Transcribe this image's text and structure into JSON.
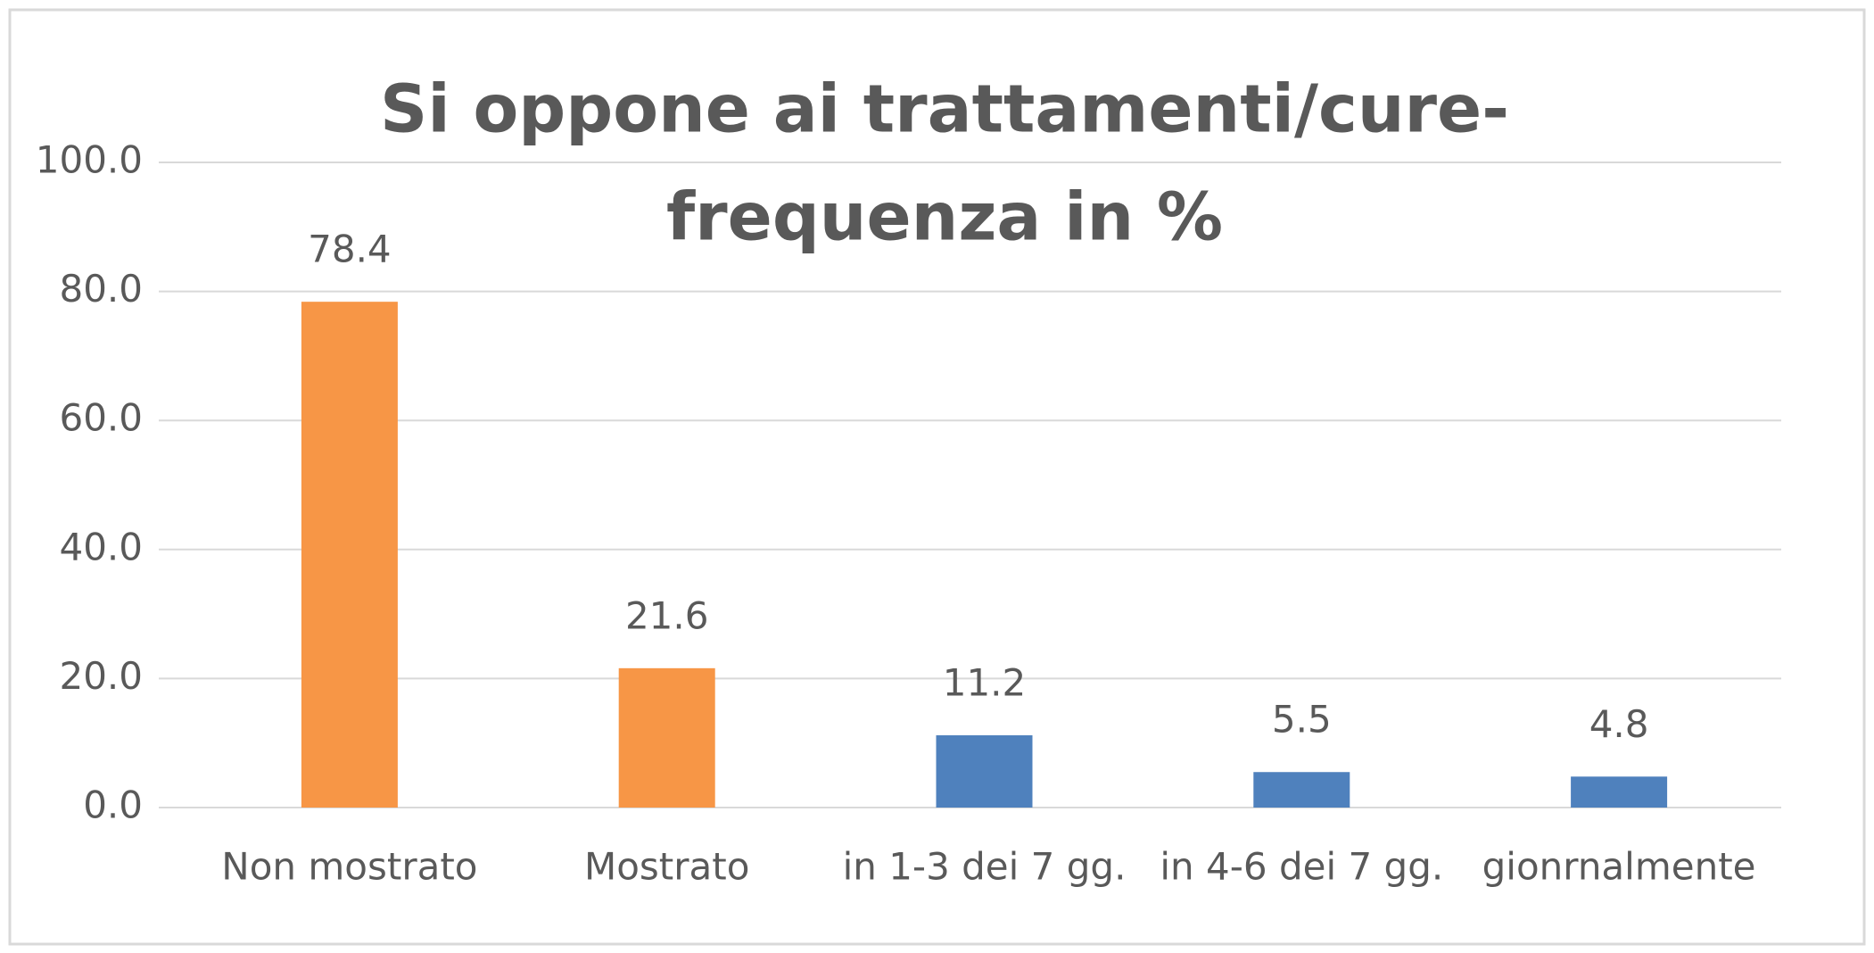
{
  "chart_data": {
    "type": "bar",
    "title": [
      "Si oppone ai trattamenti/cure-",
      "frequenza in %"
    ],
    "categories": [
      "Non mostrato",
      "Mostrato",
      "in 1-3 dei 7 gg.",
      "in 4-6 dei 7 gg.",
      "gionrnalmente"
    ],
    "values": [
      78.4,
      21.6,
      11.2,
      5.5,
      4.8
    ],
    "colors": [
      "#f79646",
      "#f79646",
      "#4f81bd",
      "#4f81bd",
      "#4f81bd"
    ],
    "ylim": [
      0,
      100
    ],
    "yticks": [
      {
        "value": 0,
        "label": "0.0"
      },
      {
        "value": 20,
        "label": "20.0"
      },
      {
        "value": 40,
        "label": "40.0"
      },
      {
        "value": 60,
        "label": "60.0"
      },
      {
        "value": 80,
        "label": "80.0"
      },
      {
        "value": 100,
        "label": "100.0"
      }
    ],
    "grid": true
  }
}
